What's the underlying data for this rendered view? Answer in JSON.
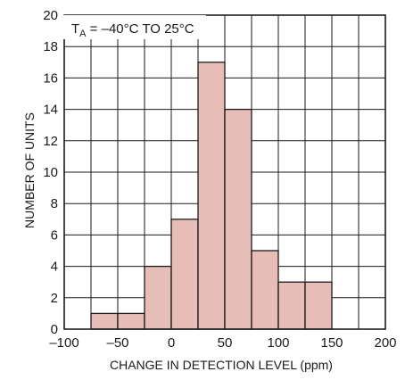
{
  "chart_data": {
    "type": "bar",
    "bin_edges": [
      -75,
      -50,
      -25,
      0,
      25,
      50,
      75,
      100,
      125,
      150
    ],
    "values": [
      1,
      1,
      4,
      7,
      17,
      14,
      5,
      3,
      3
    ],
    "xlim": [
      -100,
      200
    ],
    "ylim": [
      0,
      20
    ],
    "xticks": [
      -100,
      -50,
      0,
      50,
      100,
      150,
      200
    ],
    "yticks": [
      0,
      2,
      4,
      6,
      8,
      10,
      12,
      14,
      16,
      18,
      20
    ],
    "xlabel": "CHANGE IN DETECTION LEVEL (ppm)",
    "ylabel": "NUMBER OF UNITS",
    "annotation": {
      "main": "T",
      "subscript": "A",
      "rest": " = –40°C TO 25°C"
    },
    "grid": true,
    "bar_color": "#e6bdb7",
    "line_color": "#1a1a1a"
  }
}
